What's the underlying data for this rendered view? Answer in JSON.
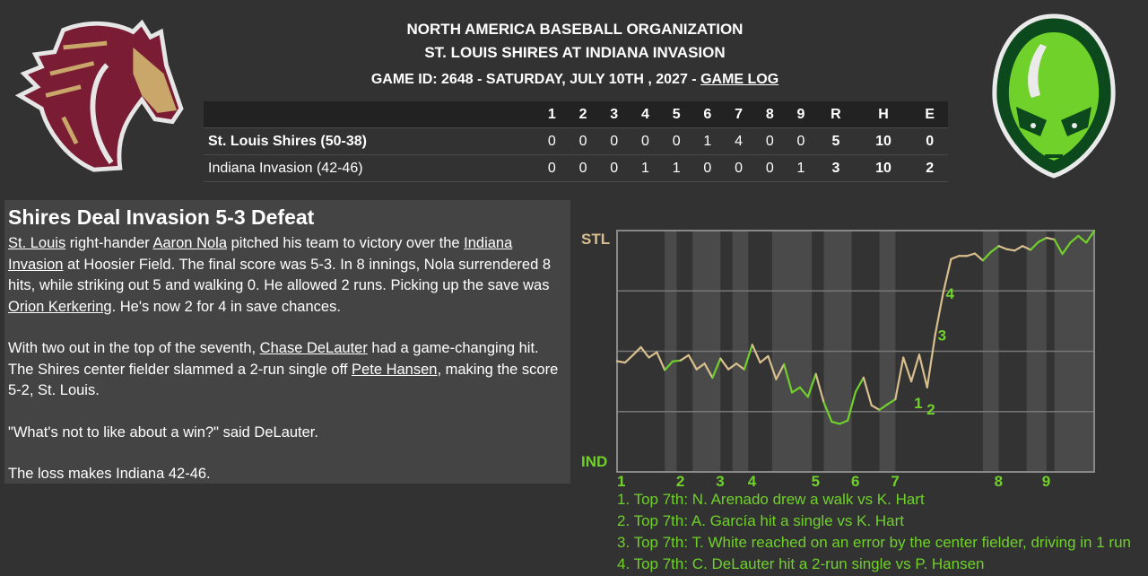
{
  "header": {
    "line1": "NORTH AMERICA BASEBALL ORGANIZATION",
    "line2": "ST. LOUIS SHIRES AT INDIANA INVASION",
    "line3": "GAME ID: 2648 - SATURDAY, JULY 10TH , 2027 - ",
    "game_log_link": "GAME LOG"
  },
  "logos": {
    "away": "St. Louis Shires horse logo",
    "home": "Indiana Invasion alien logo"
  },
  "linescore": {
    "columns": [
      "1",
      "2",
      "3",
      "4",
      "5",
      "6",
      "7",
      "8",
      "9",
      "R",
      "H",
      "E"
    ],
    "rows": [
      {
        "team": "St. Louis Shires (50-38)",
        "values": [
          "0",
          "0",
          "0",
          "0",
          "0",
          "1",
          "4",
          "0",
          "0",
          "5",
          "10",
          "0"
        ]
      },
      {
        "team": "Indiana Invasion (42-46)",
        "values": [
          "0",
          "0",
          "0",
          "1",
          "1",
          "0",
          "0",
          "0",
          "1",
          "3",
          "10",
          "2"
        ]
      }
    ]
  },
  "article": {
    "headline": "Shires Deal Invasion 5-3 Defeat",
    "paragraphs": [
      [
        {
          "text": "St. Louis",
          "link": true
        },
        {
          "text": " right-hander "
        },
        {
          "text": "Aaron Nola",
          "link": true
        },
        {
          "text": " pitched his team to victory over the "
        },
        {
          "text": "Indiana Invasion",
          "link": true
        },
        {
          "text": " at Hoosier Field. The final score was 5-3. In 8 innings, Nola surrendered 8 hits, while striking out 5 and walking 0. He allowed 2 runs. Picking up the save was "
        },
        {
          "text": "Orion Kerkering",
          "link": true
        },
        {
          "text": ". He's now 2 for 4 in save chances."
        }
      ],
      [
        {
          "text": "With two out in the top of the seventh, "
        },
        {
          "text": "Chase DeLauter",
          "link": true
        },
        {
          "text": " had a game-changing hit. The Shires center fielder slammed a 2-run single off "
        },
        {
          "text": "Pete Hansen",
          "link": true
        },
        {
          "text": ", making the score 5-2, St. Louis."
        }
      ],
      [
        {
          "text": "\"What's not to like about a win?\" said DeLauter."
        }
      ],
      [
        {
          "text": "The loss makes Indiana 42-46."
        }
      ]
    ]
  },
  "chart_data": {
    "type": "line",
    "title": "",
    "y_top_label": "STL",
    "y_bottom_label": "IND",
    "ylim": [
      0,
      100
    ],
    "grid": true,
    "colors": {
      "STL": "#d8bf8d",
      "IND": "#6fd12a",
      "band": "#4a4a4a",
      "plot_bg": "#333333",
      "grid": "#777777"
    },
    "inning_labels": [
      {
        "label": "1",
        "play": 0
      },
      {
        "label": "2",
        "play": 8
      },
      {
        "label": "3",
        "play": 13
      },
      {
        "label": "4",
        "play": 17
      },
      {
        "label": "5",
        "play": 25
      },
      {
        "label": "6",
        "play": 30
      },
      {
        "label": "7",
        "play": 35
      },
      {
        "label": "8",
        "play": 48
      },
      {
        "label": "9",
        "play": 54
      }
    ],
    "bottom_half_bands": [
      [
        6,
        7.5
      ],
      [
        9.5,
        13
      ],
      [
        14.5,
        16.5
      ],
      [
        19.5,
        24.5
      ],
      [
        26,
        29.5
      ],
      [
        33,
        35
      ],
      [
        46,
        48
      ],
      [
        51.5,
        54
      ],
      [
        55,
        60
      ]
    ],
    "points": [
      [
        0,
        45.9,
        "STL"
      ],
      [
        1,
        45.3,
        "STL"
      ],
      [
        2,
        48.4,
        "STL"
      ],
      [
        3,
        51.7,
        "STL"
      ],
      [
        4,
        47.4,
        "STL"
      ],
      [
        5,
        49.6,
        "STL"
      ],
      [
        6,
        42.2,
        "STL"
      ],
      [
        7,
        45.8,
        "IND"
      ],
      [
        8,
        46.2,
        "IND"
      ],
      [
        9,
        48.4,
        "STL"
      ],
      [
        10,
        42.5,
        "STL"
      ],
      [
        11,
        44.9,
        "STL"
      ],
      [
        12,
        39.0,
        "STL"
      ],
      [
        13,
        47.0,
        "IND"
      ],
      [
        14,
        42.5,
        "STL"
      ],
      [
        15,
        44.9,
        "STL"
      ],
      [
        16,
        42.5,
        "STL"
      ],
      [
        17,
        52.7,
        "IND"
      ],
      [
        18,
        45.3,
        "STL"
      ],
      [
        19,
        48.0,
        "STL"
      ],
      [
        20,
        38.4,
        "STL"
      ],
      [
        21,
        44.6,
        "STL"
      ],
      [
        22,
        32.9,
        "IND"
      ],
      [
        23,
        35.0,
        "IND"
      ],
      [
        24,
        31.1,
        "IND"
      ],
      [
        25,
        40.6,
        "IND"
      ],
      [
        26,
        28.8,
        "STL"
      ],
      [
        27,
        20.8,
        "IND"
      ],
      [
        28,
        19.9,
        "IND"
      ],
      [
        29,
        21.3,
        "IND"
      ],
      [
        30,
        33.2,
        "IND"
      ],
      [
        31,
        39.1,
        "IND"
      ],
      [
        32,
        27.6,
        "STL"
      ],
      [
        33,
        25.7,
        "STL"
      ],
      [
        34,
        28.0,
        "IND"
      ],
      [
        35,
        30.1,
        "IND"
      ],
      [
        36,
        47.4,
        "STL"
      ],
      [
        37,
        37.5,
        "STL"
      ],
      [
        38,
        48.6,
        "STL"
      ],
      [
        39,
        35.0,
        "STL"
      ],
      [
        40,
        56.7,
        "STL"
      ],
      [
        41,
        74.0,
        "STL"
      ],
      [
        42,
        88.2,
        "STL"
      ],
      [
        43,
        89.5,
        "STL"
      ],
      [
        44,
        89.5,
        "STL"
      ],
      [
        45,
        90.5,
        "STL"
      ],
      [
        46,
        87.6,
        "STL"
      ],
      [
        47,
        91.1,
        "IND"
      ],
      [
        48,
        93.6,
        "IND"
      ],
      [
        49,
        92.3,
        "STL"
      ],
      [
        50,
        91.7,
        "STL"
      ],
      [
        51,
        93.6,
        "STL"
      ],
      [
        52,
        92.0,
        "STL"
      ],
      [
        53,
        95.3,
        "IND"
      ],
      [
        54,
        97.0,
        "IND"
      ],
      [
        55,
        96.3,
        "STL"
      ],
      [
        56,
        90.3,
        "IND"
      ],
      [
        57,
        95.0,
        "IND"
      ],
      [
        58,
        97.8,
        "IND"
      ],
      [
        59,
        95.0,
        "IND"
      ],
      [
        60,
        99.8,
        "IND"
      ]
    ],
    "annotations": [
      {
        "label": "1",
        "play": 37
      },
      {
        "label": "2",
        "play": 38.6
      },
      {
        "label": "3",
        "play": 40
      },
      {
        "label": "4",
        "play": 41
      }
    ]
  },
  "events": [
    "1. Top 7th: N. Arenado drew a walk vs K. Hart",
    "2. Top 7th: A. García hit a single vs K. Hart",
    "3. Top 7th: T. White reached on an error by the center fielder, driving in 1 run",
    "4. Top 7th: C. DeLauter hit a 2-run single vs P. Hansen"
  ]
}
